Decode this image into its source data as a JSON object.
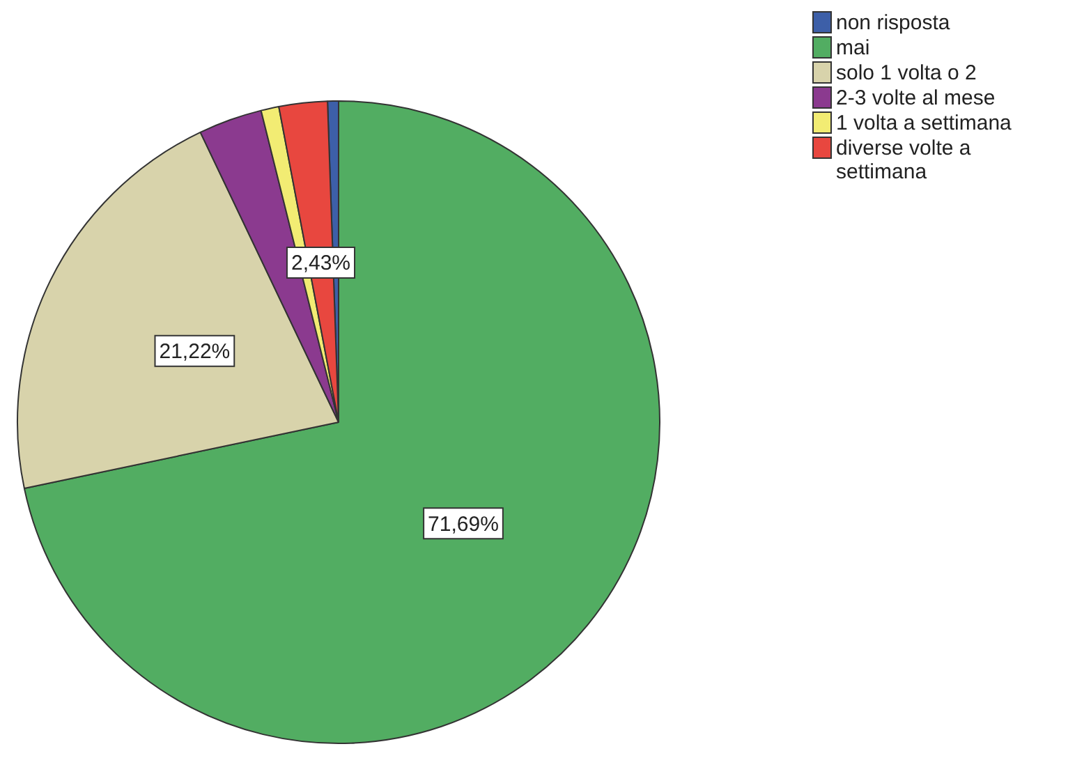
{
  "chart_data": {
    "type": "pie",
    "categories": [
      "non risposta",
      "mai",
      "solo 1 volta o 2",
      "2-3 volte al mese",
      "1 volta a settimana",
      "diverse volte a settimana"
    ],
    "values": [
      0.55,
      71.69,
      21.22,
      3.2,
      0.9,
      2.43
    ],
    "colors": [
      "#3d5fa8",
      "#52ad62",
      "#d8d3ab",
      "#8b3a8f",
      "#f2ec73",
      "#e8473f"
    ],
    "value_labels": [
      null,
      "71,69%",
      "21,22%",
      null,
      null,
      "2,43%"
    ],
    "legend": "top right"
  }
}
